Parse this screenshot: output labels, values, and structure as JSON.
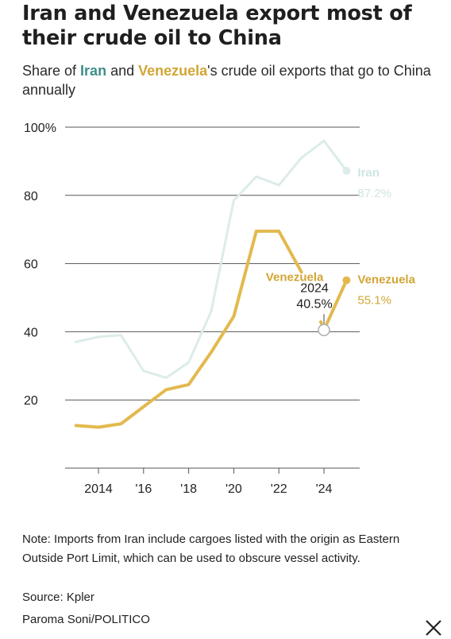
{
  "title": "Iran and Venezuela export most of their crude oil to China",
  "subtitle": {
    "before": "Share of ",
    "iran": "Iran",
    "middle": " and ",
    "venezuela": "Venezuela",
    "after": "'s crude oil exports that go to China annually"
  },
  "colors": {
    "iran_text": "#3e8f87",
    "iran_line": "#dcecea",
    "iran_label": "#cfe5e2",
    "venezuela": "#e3b94e",
    "venezuela_text": "#d2a635",
    "grid": "#555555",
    "annotation_circle": "#b0b0b0"
  },
  "chart_data": {
    "type": "line",
    "x": [
      2013,
      2014,
      2015,
      2016,
      2017,
      2018,
      2019,
      2020,
      2021,
      2022,
      2023,
      2024,
      2025
    ],
    "x_ticks": [
      {
        "value": 2014,
        "label": "2014"
      },
      {
        "value": 2016,
        "label": "'16"
      },
      {
        "value": 2018,
        "label": "'18"
      },
      {
        "value": 2020,
        "label": "'20"
      },
      {
        "value": 2022,
        "label": "'22"
      },
      {
        "value": 2024,
        "label": "'24"
      }
    ],
    "y_ticks": [
      {
        "value": 20,
        "label": "20"
      },
      {
        "value": 40,
        "label": "40"
      },
      {
        "value": 60,
        "label": "60"
      },
      {
        "value": 80,
        "label": "80"
      },
      {
        "value": 100,
        "label": "100%"
      }
    ],
    "xlim": [
      2012.5,
      2025.6
    ],
    "ylim": [
      0,
      100
    ],
    "grid": true,
    "series": [
      {
        "name": "Iran",
        "values": [
          37,
          38.5,
          39,
          28.5,
          26.5,
          31,
          46,
          78.5,
          85.5,
          83,
          91,
          96,
          87.2
        ],
        "end_label": "Iran",
        "end_value": "87.2%"
      },
      {
        "name": "Venezuela",
        "values": [
          12.5,
          12,
          13,
          18,
          23,
          24.5,
          34,
          44.5,
          69.5,
          69.5,
          57.5,
          40.5,
          55.1
        ],
        "end_label": "Venezuela",
        "end_value": "55.1%"
      }
    ],
    "annotations": [
      {
        "series": "Venezuela",
        "text": "Venezuela",
        "x": 2022.7,
        "y": 57.5
      },
      {
        "series": "Venezuela",
        "x": 2024,
        "y": 40.5,
        "line1": "2024",
        "line2": "40.5%"
      }
    ]
  },
  "note": "Note: Imports from Iran include cargoes listed with the origin as Eastern Outside Port Limit, which can be used to obscure vessel activity.",
  "source": "Source: Kpler",
  "credit": "Paroma Soni/POLITICO",
  "close_icon": "close-icon"
}
